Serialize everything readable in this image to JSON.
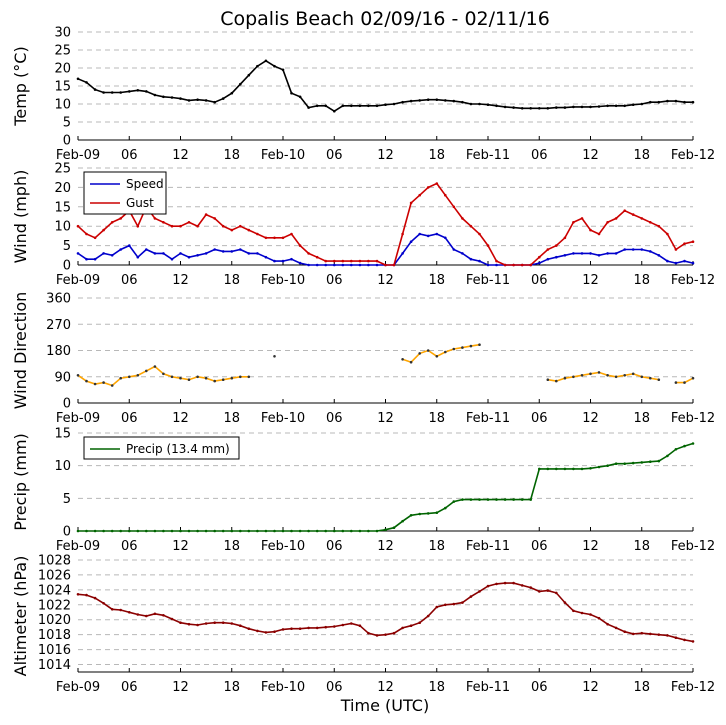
{
  "chart_data": {
    "type": "line",
    "title": "Copalis Beach 02/09/16 - 02/11/16",
    "xlabel": "Time (UTC)",
    "x_tick_labels": [
      "Feb-09",
      "06",
      "12",
      "18",
      "Feb-10",
      "06",
      "12",
      "18",
      "Feb-11",
      "06",
      "12",
      "18",
      "Feb-12"
    ],
    "x_range_hours": [
      0,
      72
    ],
    "panels": [
      {
        "id": "temp",
        "ylabel": "Temp (°C)",
        "ylim": [
          0,
          30
        ],
        "yticks": [
          "0",
          "5",
          "10",
          "15",
          "20",
          "25",
          "30"
        ],
        "grid": "horizontal-dashed",
        "series": [
          {
            "name": "Temp",
            "color": "#000000",
            "x": [
              0,
              1,
              2,
              3,
              4,
              5,
              6,
              7,
              8,
              9,
              10,
              11,
              12,
              13,
              14,
              15,
              16,
              17,
              18,
              19,
              20,
              21,
              22,
              23,
              24,
              25,
              26,
              27,
              28,
              29,
              30,
              31,
              32,
              33,
              34,
              35,
              36,
              37,
              38,
              39,
              40,
              41,
              42,
              43,
              44,
              45,
              46,
              47,
              48,
              49,
              50,
              51,
              52,
              53,
              54,
              55,
              56,
              57,
              58,
              59,
              60,
              61,
              62,
              63,
              64,
              65,
              66,
              67,
              68,
              69,
              70,
              71,
              72
            ],
            "values": [
              17,
              16,
              14,
              13.2,
              13.2,
              13.2,
              13.5,
              13.8,
              13.5,
              12.5,
              12,
              11.8,
              11.5,
              11,
              11.2,
              11,
              10.5,
              11.5,
              13,
              15.5,
              18,
              20.5,
              22,
              20.5,
              19.5,
              13,
              12,
              9,
              9.5,
              9.5,
              8,
              9.5,
              9.5,
              9.5,
              9.5,
              9.5,
              9.8,
              10,
              10.5,
              10.8,
              11,
              11.2,
              11.2,
              11,
              10.8,
              10.5,
              10,
              10,
              9.8,
              9.5,
              9.2,
              9,
              8.8,
              8.8,
              8.8,
              8.8,
              9,
              9,
              9.2,
              9.2,
              9.2,
              9.3,
              9.5,
              9.5,
              9.5,
              9.8,
              10,
              10.5,
              10.5,
              10.8,
              10.8,
              10.5,
              10.5
            ]
          }
        ]
      },
      {
        "id": "wind",
        "ylabel": "Wind (mph)",
        "ylim": [
          0,
          25
        ],
        "yticks": [
          "0",
          "5",
          "10",
          "15",
          "20",
          "25"
        ],
        "grid": "horizontal-dashed",
        "legend": {
          "loc": "upper-left",
          "entries": [
            "Speed",
            "Gust"
          ]
        },
        "series": [
          {
            "name": "Speed",
            "color": "#0000cc",
            "x": [
              0,
              1,
              2,
              3,
              4,
              5,
              6,
              7,
              8,
              9,
              10,
              11,
              12,
              13,
              14,
              15,
              16,
              17,
              18,
              19,
              20,
              21,
              22,
              23,
              24,
              25,
              26,
              27,
              28,
              29,
              30,
              31,
              32,
              33,
              34,
              35,
              36,
              37,
              38,
              39,
              40,
              41,
              42,
              43,
              44,
              45,
              46,
              47,
              48,
              49,
              50,
              51,
              52,
              53,
              54,
              55,
              56,
              57,
              58,
              59,
              60,
              61,
              62,
              63,
              64,
              65,
              66,
              67,
              68,
              69,
              70,
              71,
              72
            ],
            "values": [
              3,
              1.5,
              1.5,
              3,
              2.5,
              4,
              5,
              2,
              4,
              3,
              3,
              1.5,
              3,
              2,
              2.5,
              3,
              4,
              3.5,
              3.5,
              4,
              3,
              3,
              2,
              1,
              1,
              1.5,
              0.5,
              0,
              0,
              0,
              0,
              0,
              0,
              0,
              0,
              0,
              0,
              0,
              3,
              6,
              8,
              7.5,
              8,
              7,
              4,
              3,
              1.5,
              1,
              0,
              0,
              0,
              0,
              0,
              0,
              0.5,
              1.5,
              2,
              2.5,
              3,
              3,
              3,
              2.5,
              3,
              3,
              4,
              4,
              4,
              3.5,
              2.5,
              1,
              0.5,
              1,
              0.5
            ]
          },
          {
            "name": "Gust",
            "color": "#cc0000",
            "x": [
              0,
              1,
              2,
              3,
              4,
              5,
              6,
              7,
              8,
              9,
              10,
              11,
              12,
              13,
              14,
              15,
              16,
              17,
              18,
              19,
              20,
              21,
              22,
              23,
              24,
              25,
              26,
              27,
              28,
              29,
              30,
              31,
              32,
              33,
              34,
              35,
              36,
              37,
              38,
              39,
              40,
              41,
              42,
              43,
              44,
              45,
              46,
              47,
              48,
              49,
              50,
              51,
              52,
              53,
              54,
              55,
              56,
              57,
              58,
              59,
              60,
              61,
              62,
              63,
              64,
              65,
              66,
              67,
              68,
              69,
              70,
              71,
              72
            ],
            "values": [
              10,
              8,
              7,
              9,
              11,
              12,
              14,
              10,
              15,
              12,
              11,
              10,
              10,
              11,
              10,
              13,
              12,
              10,
              9,
              10,
              9,
              8,
              7,
              7,
              7,
              8,
              5,
              3,
              2,
              1,
              1,
              1,
              1,
              1,
              1,
              1,
              0,
              0,
              8,
              16,
              18,
              20,
              21,
              18,
              15,
              12,
              10,
              8,
              5,
              1,
              0,
              0,
              0,
              0,
              2,
              4,
              5,
              7,
              11,
              12,
              9,
              8,
              11,
              12,
              14,
              13,
              12,
              11,
              10,
              8,
              4,
              5.5,
              6
            ]
          }
        ]
      },
      {
        "id": "dir",
        "ylabel": "Wind Direction",
        "ylim": [
          0,
          360
        ],
        "yticks": [
          "0",
          "90",
          "180",
          "270",
          "360"
        ],
        "grid": "horizontal-dashed",
        "series": [
          {
            "name": "Direction",
            "color": "#ffa500",
            "x": [
              0,
              1,
              2,
              3,
              4,
              5,
              6,
              7,
              8,
              9,
              10,
              11,
              12,
              13,
              14,
              15,
              16,
              17,
              18,
              19,
              20,
              21,
              22,
              23,
              24,
              25,
              26,
              27,
              28,
              29,
              30,
              31,
              32,
              33,
              34,
              35,
              36,
              37,
              38,
              39,
              40,
              41,
              42,
              43,
              44,
              45,
              46,
              47,
              48,
              49,
              50,
              51,
              52,
              53,
              54,
              55,
              56,
              57,
              58,
              59,
              60,
              61,
              62,
              63,
              64,
              65,
              66,
              67,
              68,
              69,
              70,
              71,
              72
            ],
            "values": [
              95,
              75,
              65,
              70,
              60,
              85,
              90,
              95,
              110,
              125,
              100,
              90,
              85,
              80,
              90,
              85,
              75,
              80,
              85,
              90,
              90,
              null,
              null,
              160,
              null,
              null,
              null,
              null,
              null,
              null,
              null,
              null,
              null,
              null,
              null,
              null,
              null,
              null,
              150,
              140,
              170,
              180,
              160,
              175,
              185,
              190,
              195,
              200,
              null,
              null,
              null,
              null,
              null,
              null,
              null,
              80,
              75,
              85,
              90,
              95,
              100,
              105,
              95,
              90,
              95,
              100,
              90,
              85,
              80,
              null,
              70,
              70,
              85
            ]
          }
        ]
      },
      {
        "id": "precip",
        "ylabel": "Precip (mm)",
        "ylim": [
          0,
          15
        ],
        "yticks": [
          "0",
          "5",
          "10",
          "15"
        ],
        "grid": "horizontal-dashed",
        "legend": {
          "loc": "upper-left",
          "entries": [
            "Precip (13.4 mm)"
          ]
        },
        "series": [
          {
            "name": "Precip (13.4 mm)",
            "color": "#006400",
            "x": [
              0,
              1,
              2,
              3,
              4,
              5,
              6,
              7,
              8,
              9,
              10,
              11,
              12,
              13,
              14,
              15,
              16,
              17,
              18,
              19,
              20,
              21,
              22,
              23,
              24,
              25,
              26,
              27,
              28,
              29,
              30,
              31,
              32,
              33,
              34,
              35,
              36,
              37,
              38,
              39,
              40,
              41,
              42,
              43,
              44,
              45,
              46,
              47,
              48,
              49,
              50,
              51,
              52,
              53,
              54,
              55,
              56,
              57,
              58,
              59,
              60,
              61,
              62,
              63,
              64,
              65,
              66,
              67,
              68,
              69,
              70,
              71,
              72
            ],
            "values": [
              0,
              0,
              0,
              0,
              0,
              0,
              0,
              0,
              0,
              0,
              0,
              0,
              0,
              0,
              0,
              0,
              0,
              0,
              0,
              0,
              0,
              0,
              0,
              0,
              0,
              0,
              0,
              0,
              0,
              0,
              0,
              0,
              0,
              0,
              0,
              0,
              0.2,
              0.5,
              1.5,
              2.4,
              2.6,
              2.7,
              2.8,
              3.5,
              4.5,
              4.8,
              4.8,
              4.8,
              4.8,
              4.8,
              4.8,
              4.8,
              4.8,
              4.8,
              9.5,
              9.5,
              9.5,
              9.5,
              9.5,
              9.5,
              9.6,
              9.8,
              10,
              10.3,
              10.3,
              10.4,
              10.5,
              10.6,
              10.7,
              11.5,
              12.5,
              13,
              13.4
            ]
          }
        ]
      },
      {
        "id": "alt",
        "ylabel": "Altimeter (hPa)",
        "ylim": [
          1013,
          1028
        ],
        "yticks": [
          "1014",
          "1016",
          "1018",
          "1020",
          "1022",
          "1024",
          "1026",
          "1028"
        ],
        "grid": "horizontal-dashed",
        "series": [
          {
            "name": "Altimeter",
            "color": "#8b0000",
            "x": [
              0,
              1,
              2,
              3,
              4,
              5,
              6,
              7,
              8,
              9,
              10,
              11,
              12,
              13,
              14,
              15,
              16,
              17,
              18,
              19,
              20,
              21,
              22,
              23,
              24,
              25,
              26,
              27,
              28,
              29,
              30,
              31,
              32,
              33,
              34,
              35,
              36,
              37,
              38,
              39,
              40,
              41,
              42,
              43,
              44,
              45,
              46,
              47,
              48,
              49,
              50,
              51,
              52,
              53,
              54,
              55,
              56,
              57,
              58,
              59,
              60,
              61,
              62,
              63,
              64,
              65,
              66,
              67,
              68,
              69,
              70,
              71,
              72
            ],
            "values": [
              1023.4,
              1023.3,
              1022.9,
              1022.2,
              1021.4,
              1021.3,
              1021,
              1020.7,
              1020.5,
              1020.8,
              1020.6,
              1020.1,
              1019.6,
              1019.4,
              1019.3,
              1019.5,
              1019.6,
              1019.6,
              1019.5,
              1019.2,
              1018.8,
              1018.5,
              1018.3,
              1018.4,
              1018.7,
              1018.8,
              1018.8,
              1018.9,
              1018.9,
              1019,
              1019.1,
              1019.3,
              1019.5,
              1019.2,
              1018.2,
              1017.9,
              1018,
              1018.2,
              1018.9,
              1019.2,
              1019.6,
              1020.5,
              1021.7,
              1022,
              1022.1,
              1022.3,
              1023.1,
              1023.8,
              1024.5,
              1024.8,
              1024.9,
              1024.9,
              1024.6,
              1024.3,
              1023.8,
              1023.9,
              1023.6,
              1022.3,
              1021.2,
              1020.9,
              1020.7,
              1020.2,
              1019.4,
              1018.9,
              1018.4,
              1018.1,
              1018.2,
              1018.1,
              1018,
              1017.9,
              1017.6,
              1017.3,
              1017.1
            ]
          }
        ]
      }
    ]
  }
}
